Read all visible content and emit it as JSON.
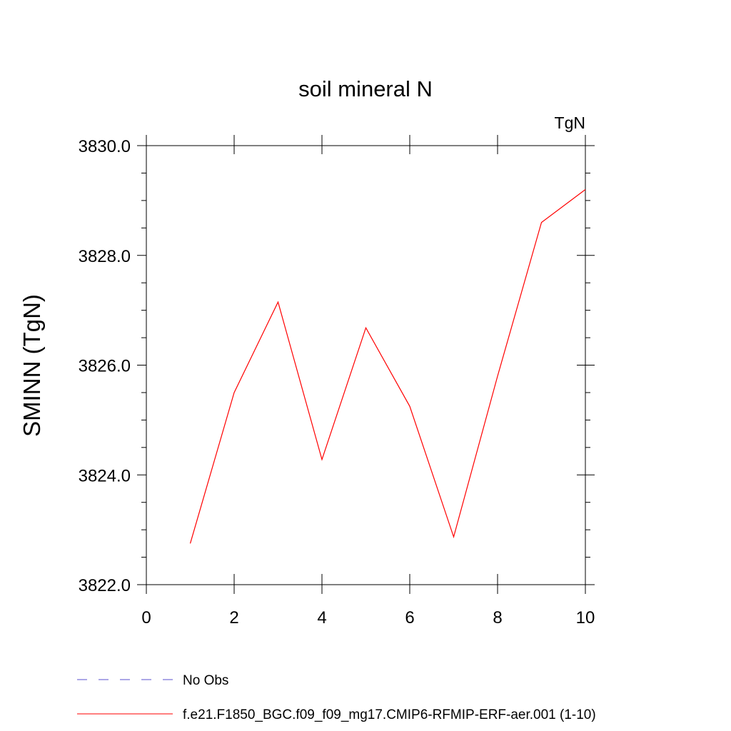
{
  "chart_data": {
    "type": "line",
    "title": "soil mineral N",
    "units_label": "TgN",
    "ylabel": "SMINN  (TgN)",
    "xlabel": "",
    "xlim": [
      0,
      10
    ],
    "ylim": [
      3822.0,
      3830.0
    ],
    "x_ticks": [
      0,
      2,
      4,
      6,
      8,
      10
    ],
    "x_tick_labels": [
      "0",
      "2",
      "4",
      "6",
      "8",
      "10"
    ],
    "y_ticks": [
      3822.0,
      3824.0,
      3826.0,
      3828.0,
      3830.0
    ],
    "y_tick_labels": [
      "3822.0",
      "3824.0",
      "3826.0",
      "3828.0",
      "3830.0"
    ],
    "grid": false,
    "legend_position": "bottom",
    "series": [
      {
        "name": "f.e21.F1850_BGC.f09_f09_mg17.CMIP6-RFMIP-ERF-aer.001 (1-10)",
        "color": "#ff0000",
        "dash": "solid",
        "x": [
          1,
          2,
          3,
          4,
          5,
          6,
          7,
          8,
          9,
          10
        ],
        "y": [
          3822.75,
          3825.5,
          3827.15,
          3824.28,
          3826.68,
          3825.25,
          3822.87,
          3825.8,
          3828.6,
          3829.2
        ]
      }
    ],
    "legend": [
      {
        "label": "No Obs",
        "color": "#5a4fcf",
        "dash": "dashed"
      },
      {
        "label": "f.e21.F1850_BGC.f09_f09_mg17.CMIP6-RFMIP-ERF-aer.001 (1-10)",
        "color": "#ff0000",
        "dash": "solid"
      }
    ]
  }
}
